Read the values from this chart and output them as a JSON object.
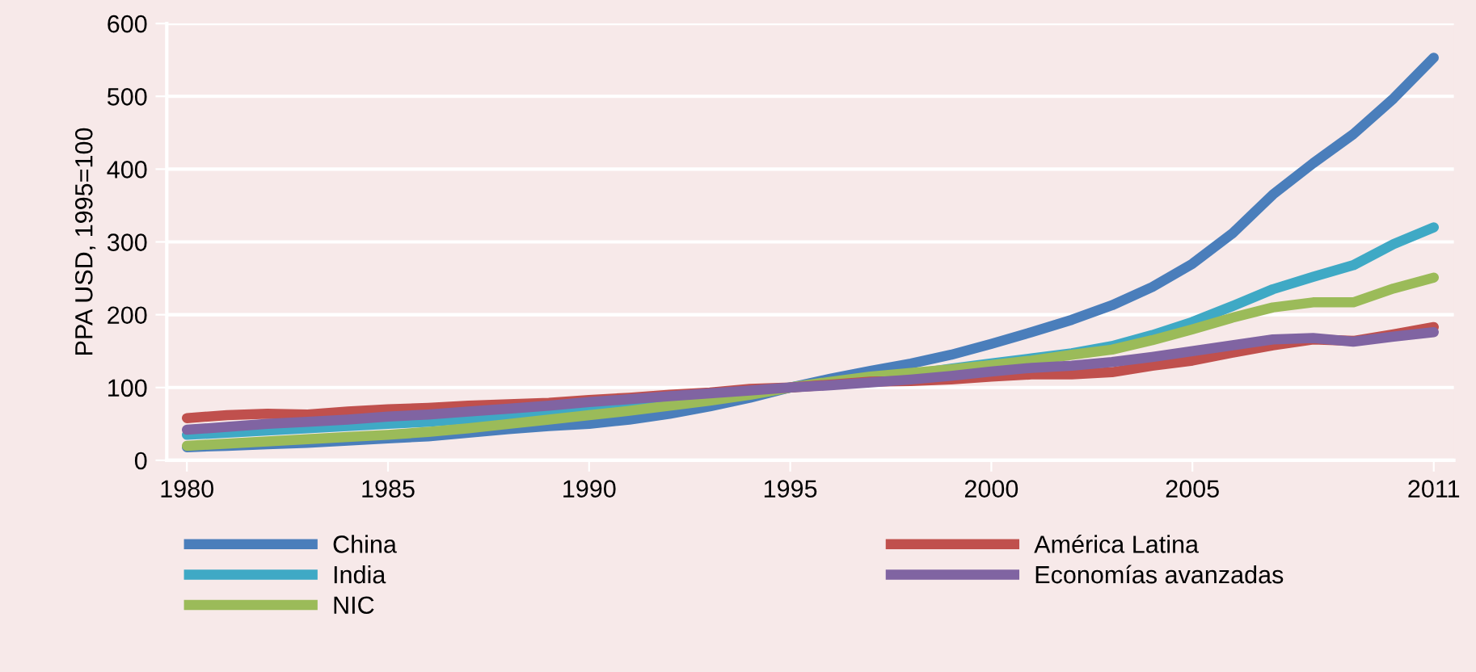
{
  "chart_data": {
    "type": "line",
    "ylabel": "PPA USD, 1995=100",
    "x": [
      1980,
      1981,
      1982,
      1983,
      1984,
      1985,
      1986,
      1987,
      1988,
      1989,
      1990,
      1991,
      1992,
      1993,
      1994,
      1995,
      1996,
      1997,
      1998,
      1999,
      2000,
      2001,
      2002,
      2003,
      2004,
      2005,
      2006,
      2007,
      2008,
      2009,
      2010,
      2011
    ],
    "series": [
      {
        "name": "China",
        "color": "#4a7ebb",
        "values": [
          18,
          20,
          22,
          24,
          27,
          30,
          33,
          38,
          43,
          47,
          50,
          56,
          64,
          74,
          86,
          100,
          112,
          123,
          133,
          145,
          160,
          176,
          193,
          213,
          238,
          270,
          312,
          365,
          408,
          448,
          497,
          553
        ]
      },
      {
        "name": "India",
        "color": "#3fa9c5",
        "values": [
          35,
          38,
          41,
          44,
          47,
          50,
          53,
          57,
          61,
          66,
          70,
          74,
          78,
          84,
          92,
          100,
          107,
          113,
          118,
          126,
          133,
          140,
          147,
          157,
          172,
          190,
          212,
          235,
          252,
          268,
          297,
          320
        ]
      },
      {
        "name": "NIC",
        "color": "#9bbb59",
        "values": [
          20,
          23,
          26,
          29,
          32,
          35,
          39,
          44,
          50,
          56,
          62,
          68,
          75,
          82,
          90,
          100,
          108,
          115,
          120,
          125,
          131,
          137,
          145,
          152,
          165,
          180,
          196,
          210,
          217,
          217,
          236,
          251
        ]
      },
      {
        "name": "América Latina",
        "color": "#c0504d",
        "values": [
          58,
          62,
          64,
          63,
          67,
          70,
          72,
          75,
          77,
          79,
          83,
          86,
          90,
          93,
          98,
          100,
          104,
          108,
          109,
          111,
          115,
          118,
          118,
          121,
          130,
          137,
          148,
          158,
          166,
          164,
          173,
          183
        ]
      },
      {
        "name": "Economías avanzadas",
        "color": "#8064a2",
        "values": [
          42,
          46,
          50,
          53,
          56,
          60,
          63,
          67,
          71,
          75,
          80,
          84,
          88,
          92,
          96,
          100,
          103,
          107,
          111,
          116,
          122,
          127,
          130,
          135,
          142,
          150,
          158,
          166,
          168,
          163,
          170,
          176
        ]
      }
    ],
    "xlim": [
      1979.5,
      2011.5
    ],
    "xticks": [
      1980,
      1985,
      1990,
      1995,
      2000,
      2005,
      2011
    ],
    "ylim": [
      0,
      600
    ],
    "yticks": [
      0,
      100,
      200,
      300,
      400,
      500,
      600
    ],
    "grid": "y",
    "legend": "bottom",
    "marker": "none",
    "line_style": "solid"
  }
}
